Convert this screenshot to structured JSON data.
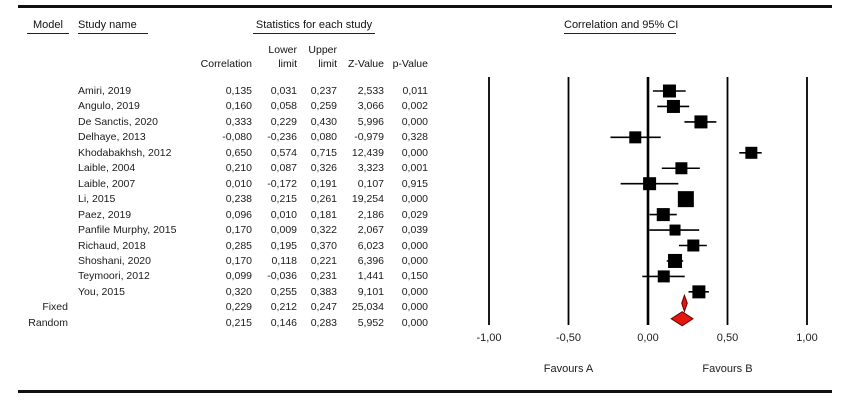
{
  "header": {
    "model": "Model",
    "study_name": "Study name",
    "stats_title": "Statistics for each study",
    "columns": {
      "correlation": "Correlation",
      "lower_1": "Lower",
      "lower_2": "limit",
      "upper_1": "Upper",
      "upper_2": "limit",
      "z": "Z-Value",
      "p": "p-Value"
    }
  },
  "chart_data": {
    "type": "forest",
    "title": "Correlation and 95% CI",
    "effect_measure": "Correlation",
    "xlim": [
      -1,
      1
    ],
    "ticks": [
      -1,
      -0.5,
      0,
      0.5,
      1
    ],
    "tick_labels": [
      "-1,00",
      "-0,50",
      "0,00",
      "0,50",
      "1,00"
    ],
    "favours_left": "Favours A",
    "favours_right": "Favours B",
    "decimal_separator": ",",
    "colors": {
      "marker": "#000000",
      "line": "#000000",
      "summary_fill": "#e3170d",
      "summary_stroke": "#660000"
    },
    "studies": [
      {
        "name": "Amiri, 2019",
        "correlation": 0.135,
        "lower": 0.031,
        "upper": 0.237,
        "z": 2.533,
        "p": 0.011,
        "size": 13
      },
      {
        "name": "Angulo, 2019",
        "correlation": 0.16,
        "lower": 0.058,
        "upper": 0.259,
        "z": 3.066,
        "p": 0.002,
        "size": 13
      },
      {
        "name": "De Sanctis, 2020",
        "correlation": 0.333,
        "lower": 0.229,
        "upper": 0.43,
        "z": 5.996,
        "p": 0.0,
        "size": 13
      },
      {
        "name": "Delhaye, 2013",
        "correlation": -0.08,
        "lower": -0.236,
        "upper": 0.08,
        "z": -0.979,
        "p": 0.328,
        "size": 12
      },
      {
        "name": "Khodabakhsh, 2012",
        "correlation": 0.65,
        "lower": 0.574,
        "upper": 0.715,
        "z": 12.439,
        "p": 0.0,
        "size": 12
      },
      {
        "name": "Laible, 2004",
        "correlation": 0.21,
        "lower": 0.087,
        "upper": 0.326,
        "z": 3.323,
        "p": 0.001,
        "size": 12
      },
      {
        "name": "Laible, 2007",
        "correlation": 0.01,
        "lower": -0.172,
        "upper": 0.191,
        "z": 0.107,
        "p": 0.915,
        "size": 13
      },
      {
        "name": "Li, 2015",
        "correlation": 0.238,
        "lower": 0.215,
        "upper": 0.261,
        "z": 19.254,
        "p": 0.0,
        "size": 16
      },
      {
        "name": "Paez, 2019",
        "correlation": 0.096,
        "lower": 0.01,
        "upper": 0.181,
        "z": 2.186,
        "p": 0.029,
        "size": 13
      },
      {
        "name": "Panfile Murphy, 2015",
        "correlation": 0.17,
        "lower": 0.009,
        "upper": 0.322,
        "z": 2.067,
        "p": 0.039,
        "size": 11
      },
      {
        "name": "Richaud, 2018",
        "correlation": 0.285,
        "lower": 0.195,
        "upper": 0.37,
        "z": 6.023,
        "p": 0.0,
        "size": 12
      },
      {
        "name": "Shoshani, 2020",
        "correlation": 0.17,
        "lower": 0.118,
        "upper": 0.221,
        "z": 6.396,
        "p": 0.0,
        "size": 14
      },
      {
        "name": "Teymoori, 2012",
        "correlation": 0.099,
        "lower": -0.036,
        "upper": 0.231,
        "z": 1.441,
        "p": 0.15,
        "size": 12
      },
      {
        "name": "You, 2015",
        "correlation": 0.32,
        "lower": 0.255,
        "upper": 0.383,
        "z": 9.101,
        "p": 0.0,
        "size": 13
      }
    ],
    "summary": [
      {
        "model": "Fixed",
        "correlation": 0.229,
        "lower": 0.212,
        "upper": 0.247,
        "z": 25.034,
        "p": 0.0,
        "half_height": 8
      },
      {
        "model": "Random",
        "correlation": 0.215,
        "lower": 0.146,
        "upper": 0.283,
        "z": 5.952,
        "p": 0.0,
        "half_height": 7
      }
    ]
  }
}
